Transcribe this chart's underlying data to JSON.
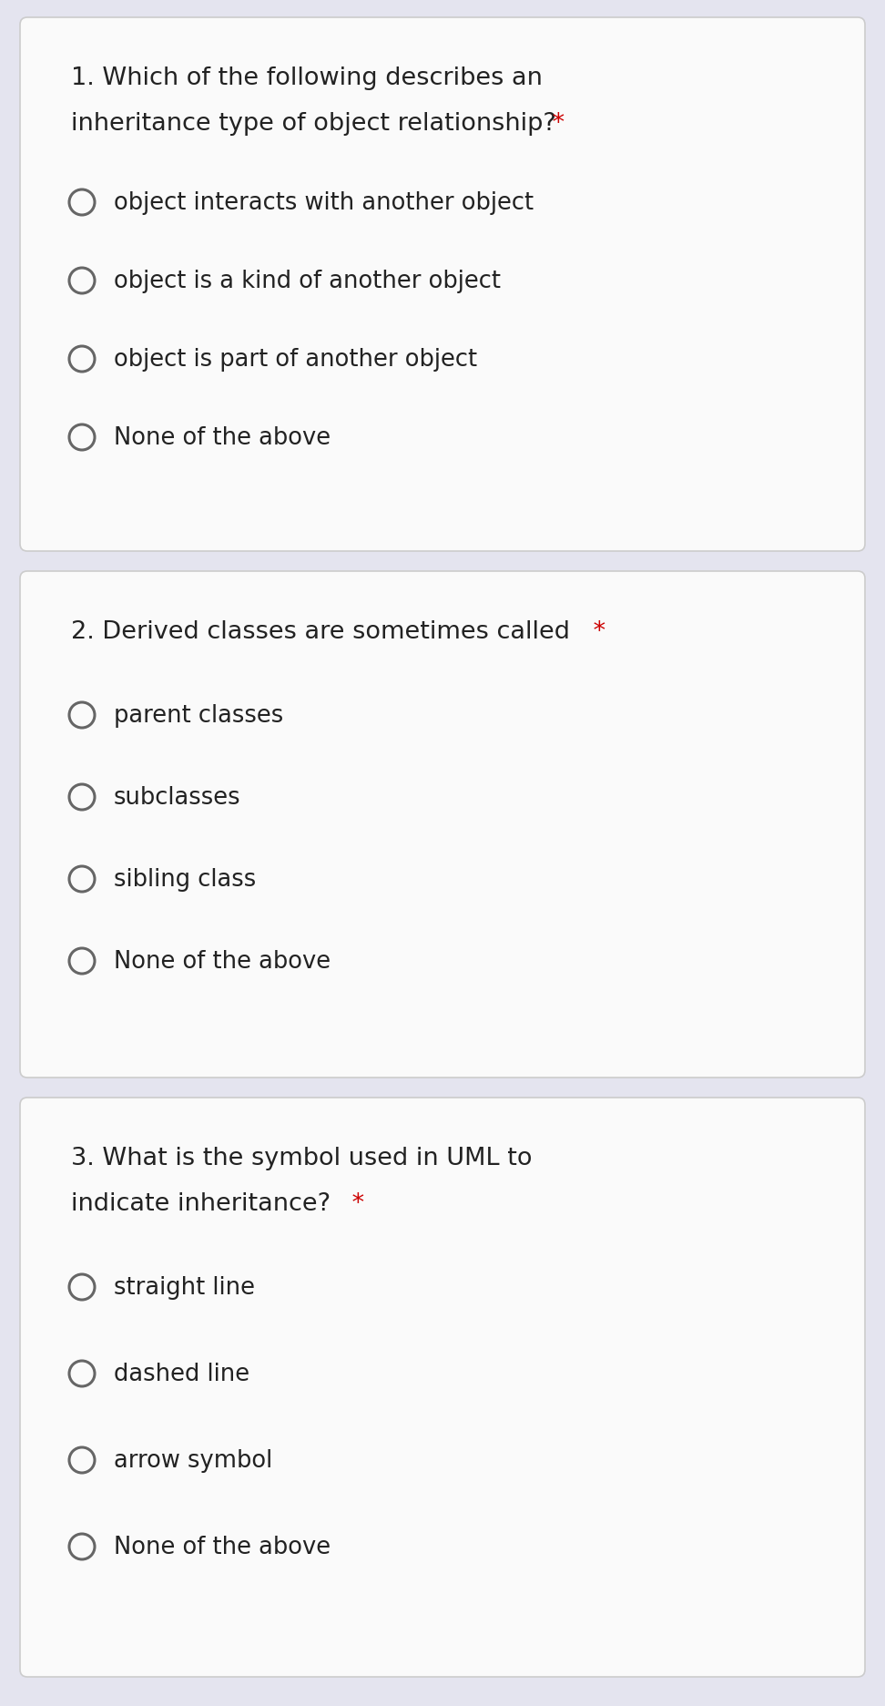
{
  "bg_color": "#e4e4ef",
  "card_color": "#fafafa",
  "card_edge_color": "#cccccc",
  "text_color": "#222222",
  "star_color": "#cc0000",
  "circle_edge_color": "#666666",
  "questions": [
    {
      "q_line1": "1. Which of the following describes an",
      "q_line2": "inheritance type of object relationship?",
      "q_line2_star": true,
      "options": [
        "object interacts with another object",
        "object is a kind of another object",
        "object is part of another object",
        "None of the above"
      ]
    },
    {
      "q_line1": "2. Derived classes are sometimes called",
      "q_line2": null,
      "q_line1_star": true,
      "options": [
        "parent classes",
        "subclasses",
        "sibling class",
        "None of the above"
      ]
    },
    {
      "q_line1": "3. What is the symbol used in UML to",
      "q_line2": "indicate inheritance?",
      "q_line2_star": true,
      "options": [
        "straight line",
        "dashed line",
        "arrow symbol",
        "None of the above"
      ]
    }
  ],
  "fig_width": 9.72,
  "fig_height": 18.74,
  "dpi": 100,
  "question_fontsize": 19.5,
  "option_fontsize": 18.5,
  "star_fontsize": 19.5
}
